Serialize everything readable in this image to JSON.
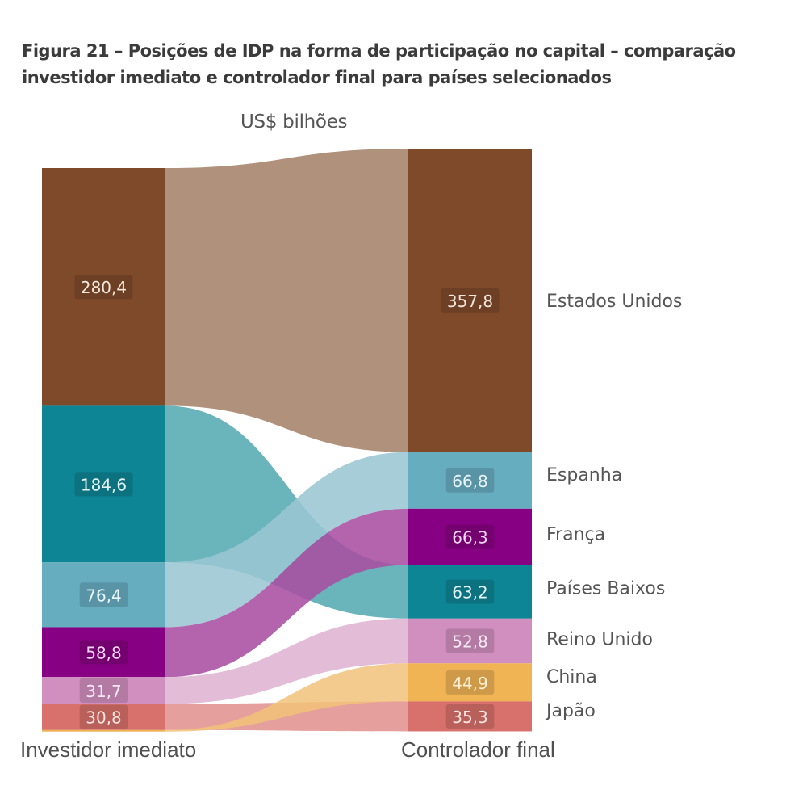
{
  "title": "Figura 21 – Posições de IDP na forma de participação no capital – comparação investidor imediato e controlador final para países selecionados",
  "unit_label": "US$ bilhões",
  "chart_data": {
    "type": "sankey",
    "title": "Figura 21 – Posições de IDP na forma de participação no capital – comparação investidor imediato e controlador final para países selecionados",
    "unit": "US$ bilhões",
    "left_axis_label": "Investidor imediato",
    "right_axis_label": "Controlador final",
    "left_nodes": [
      {
        "country": "Estados Unidos",
        "value": 280.4,
        "label": "280,4",
        "color": "#7f4a2a"
      },
      {
        "country": "Países Baixos",
        "value": 184.6,
        "label": "184,6",
        "color": "#0e8595"
      },
      {
        "country": "Espanha",
        "value": 76.4,
        "label": "76,4",
        "color": "#67adc0"
      },
      {
        "country": "França",
        "value": 58.8,
        "label": "58,8",
        "color": "#870083"
      },
      {
        "country": "Reino Unido",
        "value": 31.7,
        "label": "31,7",
        "color": "#d18fbf"
      },
      {
        "country": "Japão",
        "value": 30.8,
        "label": "30,8",
        "color": "#d8706b"
      },
      {
        "country": "China",
        "value": 1.8,
        "label": "",
        "color": "#f0b455"
      }
    ],
    "right_nodes": [
      {
        "country": "Estados Unidos",
        "value": 357.8,
        "label": "357,8",
        "color": "#7f4a2a"
      },
      {
        "country": "Espanha",
        "value": 66.8,
        "label": "66,8",
        "color": "#67adc0"
      },
      {
        "country": "França",
        "value": 66.3,
        "label": "66,3",
        "color": "#870083"
      },
      {
        "country": "Países Baixos",
        "value": 63.2,
        "label": "63,2",
        "color": "#0e8595"
      },
      {
        "country": "Reino Unido",
        "value": 52.8,
        "label": "52,8",
        "color": "#d18fbf"
      },
      {
        "country": "China",
        "value": 44.9,
        "label": "44,9",
        "color": "#f0b455"
      },
      {
        "country": "Japão",
        "value": 35.3,
        "label": "35,3",
        "color": "#d8706b"
      }
    ],
    "flow_colors": {
      "Estados Unidos": "#a4826a",
      "Países Baixos": "#55aab2",
      "Espanha": "#9ac6d3",
      "França": "#a94ea2",
      "Reino Unido": "#dfb3d3",
      "Japão": "#e1928f",
      "China": "#f2c27a"
    },
    "label_text_colors": {
      "Estados Unidos": "#f3e6dc",
      "Países Baixos": "#e4f3f5",
      "Espanha": "#eaf6fa",
      "França": "#f8d9f5",
      "Reino Unido": "#f7e9f3",
      "Japão": "#fbe5e3",
      "China": "#fcefd8"
    }
  }
}
